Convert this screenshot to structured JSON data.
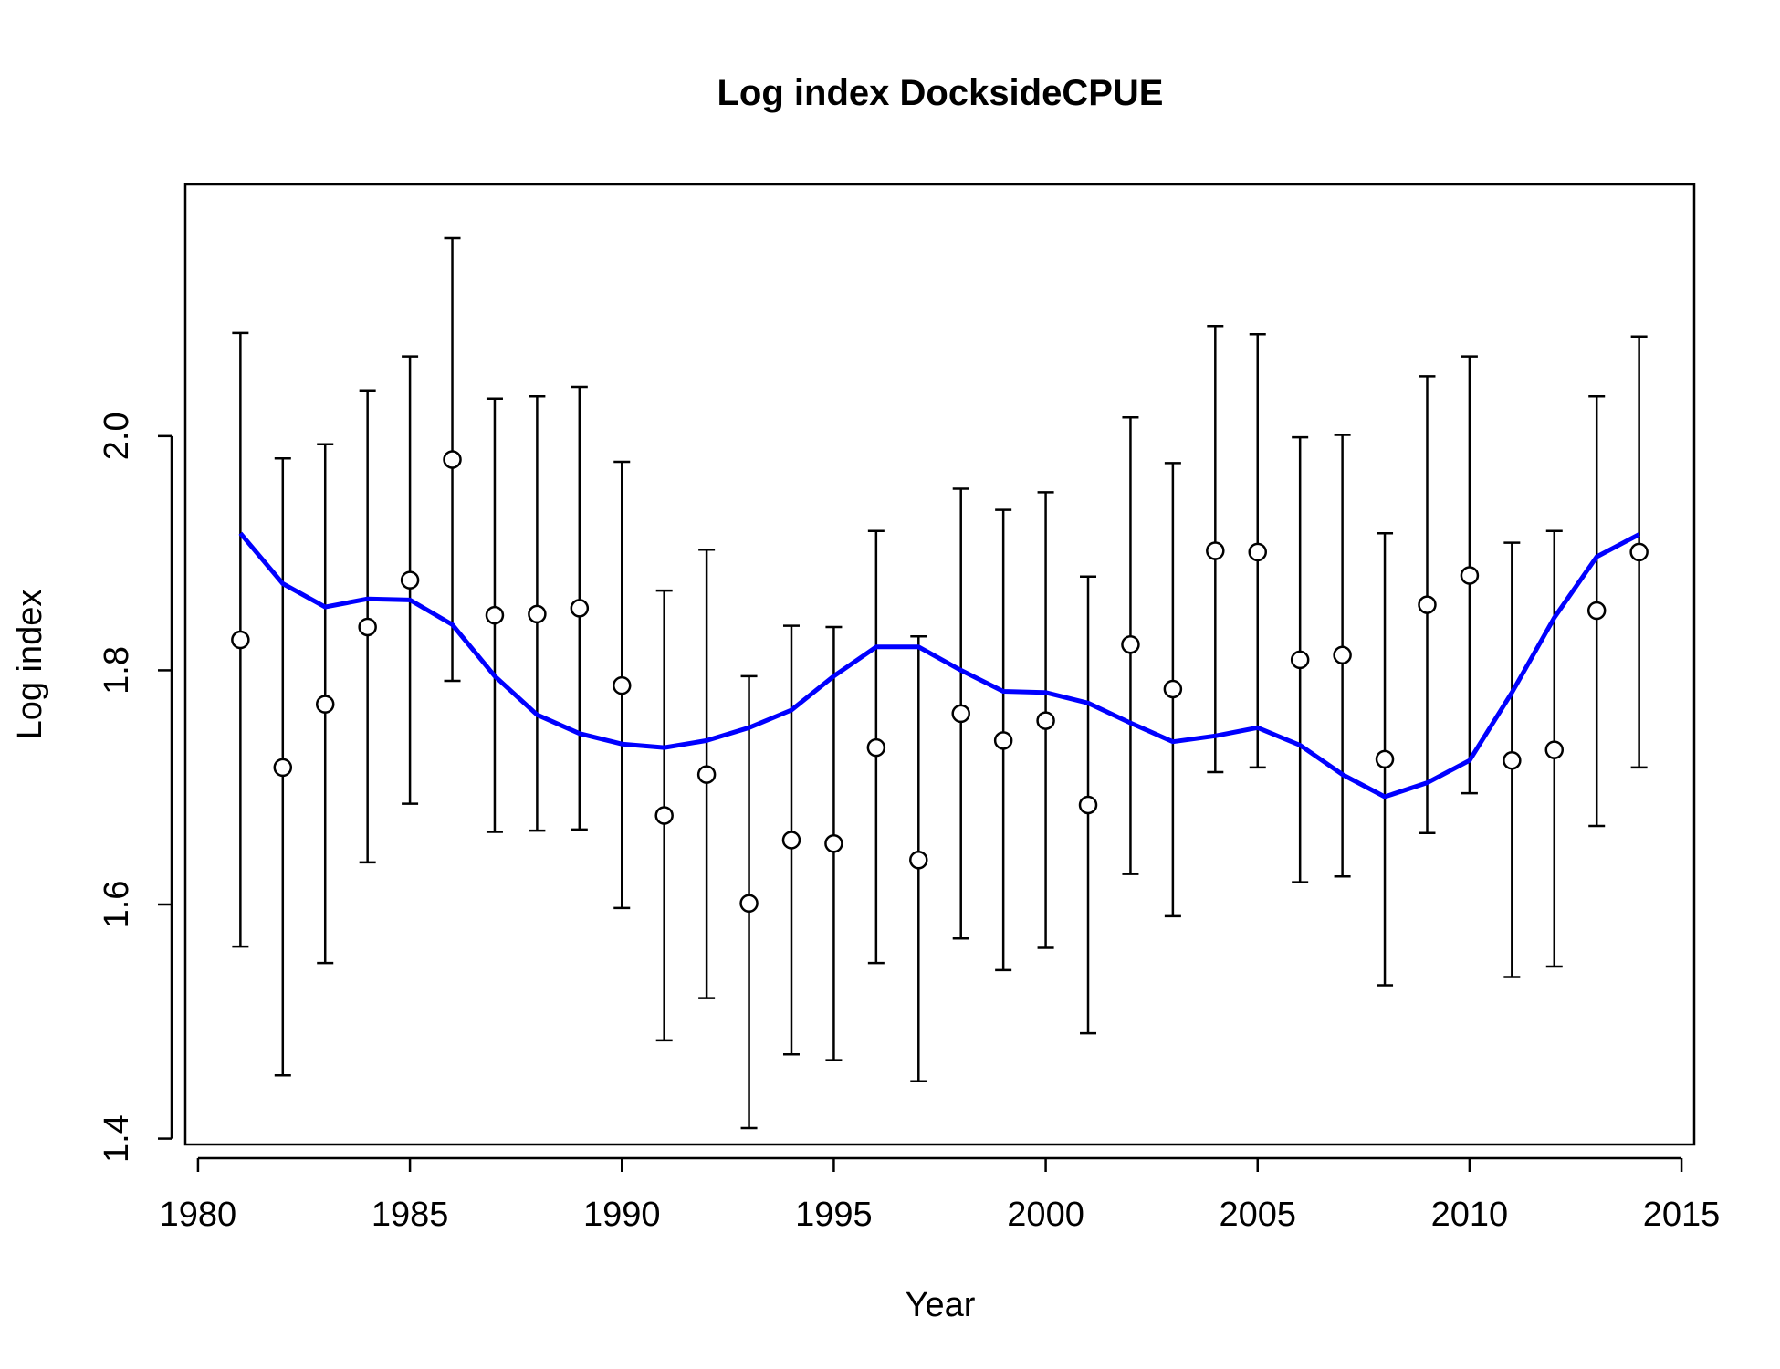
{
  "chart_data": {
    "type": "line",
    "title": "Log index DocksideCPUE",
    "xlabel": "Year",
    "ylabel": "Log index",
    "xlim": [
      1979.7,
      2015.3
    ],
    "ylim": [
      1.395,
      2.215
    ],
    "x_ticks": [
      1980,
      1985,
      1990,
      1995,
      2000,
      2005,
      2010,
      2015
    ],
    "y_ticks": [
      1.4,
      1.6,
      1.8,
      2.0
    ],
    "x_tick_labels": [
      "1980",
      "1985",
      "1990",
      "1995",
      "2000",
      "2005",
      "2010",
      "2015"
    ],
    "y_tick_labels": [
      "1.4",
      "1.6",
      "1.8",
      "2.0"
    ],
    "grid": false,
    "legend": "none",
    "colors": {
      "fit": "#0000ff",
      "observed": "#000000",
      "point_fill": "#ffffff"
    },
    "x": [
      1981,
      1982,
      1983,
      1984,
      1985,
      1986,
      1987,
      1988,
      1989,
      1990,
      1991,
      1992,
      1993,
      1994,
      1995,
      1996,
      1997,
      1998,
      1999,
      2000,
      2001,
      2002,
      2003,
      2004,
      2005,
      2006,
      2007,
      2008,
      2009,
      2010,
      2011,
      2012,
      2013,
      2014
    ],
    "series": [
      {
        "kind": "points-with-errorbars",
        "values": [
          1.826,
          1.717,
          1.771,
          1.837,
          1.877,
          1.98,
          1.847,
          1.848,
          1.853,
          1.787,
          1.676,
          1.711,
          1.601,
          1.655,
          1.652,
          1.734,
          1.638,
          1.763,
          1.74,
          1.757,
          1.685,
          1.822,
          1.784,
          1.902,
          1.901,
          1.809,
          1.813,
          1.724,
          1.856,
          1.881,
          1.723,
          1.732,
          1.851,
          1.901
        ],
        "lower": [
          1.564,
          1.454,
          1.55,
          1.636,
          1.686,
          1.791,
          1.662,
          1.663,
          1.664,
          1.597,
          1.484,
          1.52,
          1.409,
          1.472,
          1.467,
          1.55,
          1.449,
          1.571,
          1.544,
          1.563,
          1.49,
          1.626,
          1.59,
          1.713,
          1.717,
          1.619,
          1.624,
          1.531,
          1.661,
          1.695,
          1.538,
          1.547,
          1.667,
          1.717
        ],
        "upper": [
          2.088,
          1.981,
          1.993,
          2.039,
          2.068,
          2.169,
          2.032,
          2.034,
          2.042,
          1.978,
          1.868,
          1.903,
          1.795,
          1.838,
          1.837,
          1.919,
          1.829,
          1.955,
          1.937,
          1.952,
          1.88,
          2.016,
          1.977,
          2.094,
          2.087,
          1.999,
          2.001,
          1.917,
          2.051,
          2.068,
          1.909,
          1.919,
          2.034,
          2.085
        ]
      },
      {
        "kind": "fitted-line",
        "values": [
          1.917,
          1.874,
          1.854,
          1.861,
          1.86,
          1.839,
          1.795,
          1.762,
          1.746,
          1.737,
          1.734,
          1.74,
          1.751,
          1.766,
          1.795,
          1.82,
          1.82,
          1.8,
          1.782,
          1.781,
          1.772,
          1.755,
          1.739,
          1.744,
          1.751,
          1.736,
          1.711,
          1.692,
          1.704,
          1.723,
          1.781,
          1.845,
          1.897,
          1.916
        ]
      }
    ]
  }
}
